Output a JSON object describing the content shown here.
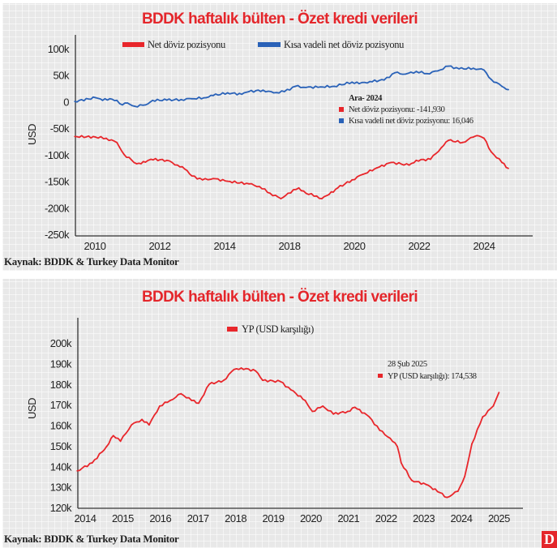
{
  "colors": {
    "red": "#e8262b",
    "blue": "#2a62b8",
    "title": "#e4262b"
  },
  "logo_text": "D",
  "chart_data": [
    {
      "type": "line",
      "title": "BDDK haftalık bülten - Özet kredi verileri",
      "ylabel": "USD",
      "xlabel": "",
      "source": "Kaynak: BDDK & Turkey Data Monitor",
      "legend_position": "top",
      "grid": false,
      "ylim": [
        -250000,
        100000
      ],
      "yticks": [
        100000,
        50000,
        0,
        -50000,
        -100000,
        -150000,
        -200000,
        -250000
      ],
      "ytick_labels": [
        "100k",
        "50k",
        "0",
        "-50k",
        "-100k",
        "-150k",
        "-200k",
        "-250k"
      ],
      "xticks": [
        2010,
        2012,
        2014,
        2018,
        2020,
        2022,
        2024
      ],
      "xtick_labels": [
        "2010",
        "2012",
        "2014",
        "2018",
        "2020",
        "2022",
        "2024"
      ],
      "annotation": {
        "date": "Ara- 2024",
        "lines": [
          "Net döviz pozisyonu: -141,930",
          "Kısa vadeli net döviz pozisyonu: 16,046"
        ]
      },
      "series": [
        {
          "name": "Net döviz pozisyonu",
          "color": "#e8262b",
          "x": [
            2009.38,
            2010.02,
            2010.35,
            2010.68,
            2010.9,
            2011.29,
            2011.56,
            2011.73,
            2012.22,
            2012.55,
            2012.77,
            2012.99,
            2013.32,
            2013.65,
            2014.18,
            2015.5,
            2016.15,
            2016.81,
            2017.47,
            2017.91,
            2018.29,
            2018.51,
            2018.84,
            2019.0,
            2019.22,
            2019.49,
            2019.93,
            2020.26,
            2020.7,
            2021.14,
            2021.69,
            2021.91,
            2022.35,
            2022.68,
            2022.9,
            2023.34,
            2023.67,
            2023.78,
            2024.0,
            2024.22,
            2024.55,
            2024.75
          ],
          "y": [
            -65700,
            -66700,
            -69000,
            -77000,
            -99500,
            -117000,
            -114000,
            -108600,
            -110600,
            -119700,
            -127000,
            -140000,
            -147500,
            -145000,
            -150000,
            -155000,
            -160000,
            -172700,
            -182800,
            -172700,
            -162600,
            -172700,
            -177800,
            -182800,
            -175000,
            -162600,
            -147500,
            -137000,
            -124700,
            -114600,
            -119700,
            -110600,
            -108600,
            -86900,
            -73000,
            -76800,
            -66700,
            -64000,
            -69000,
            -94400,
            -114600,
            -125800
          ]
        },
        {
          "name": "Kısa vadeli net döviz pozisyonu",
          "color": "#2a62b8",
          "x": [
            2009.38,
            2010.02,
            2010.24,
            2010.46,
            2010.68,
            2010.85,
            2011.01,
            2011.23,
            2011.56,
            2011.78,
            2012.22,
            2012.66,
            2012.99,
            2013.43,
            2013.65,
            2014.18,
            2015.06,
            2015.5,
            2016.37,
            2017.03,
            2017.69,
            2018.18,
            2018.51,
            2018.95,
            2019.38,
            2019.93,
            2020.15,
            2020.48,
            2020.92,
            2021.25,
            2021.58,
            2021.91,
            2022.24,
            2022.57,
            2022.9,
            2023.23,
            2023.67,
            2024.0,
            2024.22,
            2024.55,
            2024.75
          ],
          "y": [
            500,
            7600,
            2500,
            5600,
            2500,
            -6000,
            -2500,
            -8600,
            -6000,
            2500,
            3000,
            4000,
            5600,
            7600,
            11600,
            16700,
            14000,
            19000,
            21700,
            16700,
            19000,
            29000,
            26800,
            27800,
            29000,
            36900,
            34000,
            37900,
            40900,
            54500,
            52000,
            57000,
            53000,
            58000,
            67000,
            62000,
            63000,
            59600,
            42000,
            29000,
            22700
          ]
        }
      ]
    },
    {
      "type": "line",
      "title": "BDDK haftalık bülten - Özet kredi verileri",
      "ylabel": "USD",
      "xlabel": "",
      "source": "Kaynak: BDDK & Turkey Data Monitor",
      "legend_position": "top",
      "grid": false,
      "ylim": [
        120000,
        200000
      ],
      "yticks": [
        200000,
        190000,
        180000,
        170000,
        160000,
        150000,
        140000,
        130000,
        120000
      ],
      "ytick_labels": [
        "200k",
        "190k",
        "180k",
        "170k",
        "160k",
        "150k",
        "140k",
        "130k",
        "120k"
      ],
      "xticks": [
        2014,
        2015,
        2016,
        2017,
        2018,
        2019,
        2020,
        2021,
        2022,
        2023,
        2024,
        2025
      ],
      "xtick_labels": [
        "2014",
        "2015",
        "2016",
        "2017",
        "2018",
        "2019",
        "2020",
        "2021",
        "2022",
        "2023",
        "2024",
        "2025"
      ],
      "annotation": {
        "date": "28 Şub 2025",
        "lines": [
          "YP (USD karşılığı): 174,538"
        ]
      },
      "series": [
        {
          "name": "YP (USD karşılığı)",
          "color": "#e8262b",
          "x": [
            2013.79,
            2014.19,
            2014.57,
            2014.75,
            2014.94,
            2015.23,
            2015.51,
            2015.7,
            2015.98,
            2016.26,
            2016.55,
            2016.83,
            2017.02,
            2017.3,
            2017.68,
            2017.96,
            2018.15,
            2018.53,
            2018.72,
            2019.19,
            2019.47,
            2019.85,
            2020.04,
            2020.32,
            2020.6,
            2020.98,
            2021.17,
            2021.55,
            2021.83,
            2022.11,
            2022.3,
            2022.4,
            2022.68,
            2023.06,
            2023.43,
            2023.62,
            2023.91,
            2024.09,
            2024.28,
            2024.57,
            2024.85,
            2025.0
          ],
          "y": [
            137800,
            141700,
            149600,
            154900,
            152200,
            160100,
            162800,
            160100,
            169300,
            172000,
            175300,
            172000,
            170700,
            179900,
            181800,
            187100,
            187800,
            186400,
            181800,
            181200,
            177200,
            172000,
            166700,
            169300,
            165400,
            166700,
            168700,
            164100,
            157500,
            153600,
            149600,
            141700,
            133200,
            131200,
            127200,
            124900,
            127900,
            135100,
            150900,
            164100,
            169300,
            175900
          ]
        }
      ]
    }
  ]
}
